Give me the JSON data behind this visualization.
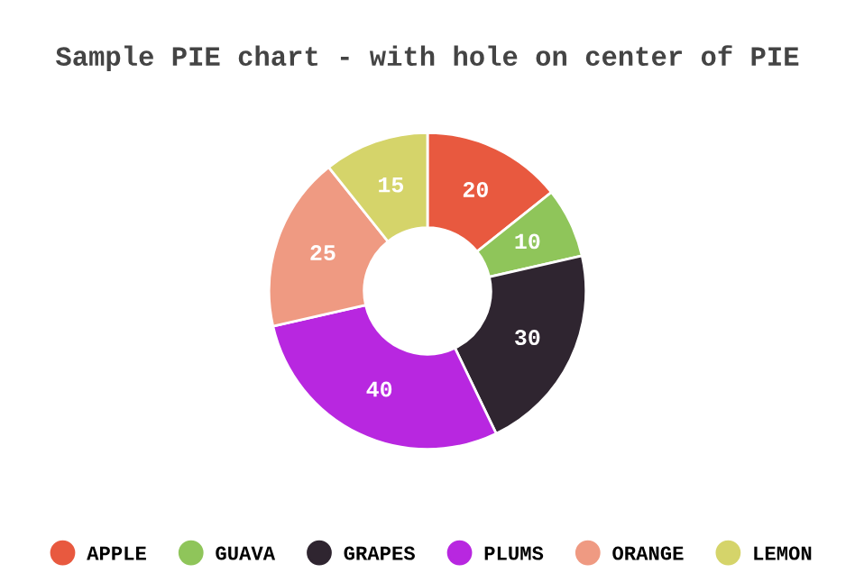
{
  "chart_data": {
    "type": "donut",
    "title": "Sample PIE chart - with hole on center of PIE",
    "categories": [
      "APPLE",
      "GUAVA",
      "GRAPES",
      "PLUMS",
      "ORANGE",
      "LEMON"
    ],
    "values": [
      20,
      10,
      30,
      40,
      25,
      15
    ],
    "colors": [
      "#e8593f",
      "#8fc55a",
      "#2f2530",
      "#b827e0",
      "#ef9a82",
      "#d5d46a"
    ],
    "data_labels": true,
    "legend": "bottom"
  }
}
